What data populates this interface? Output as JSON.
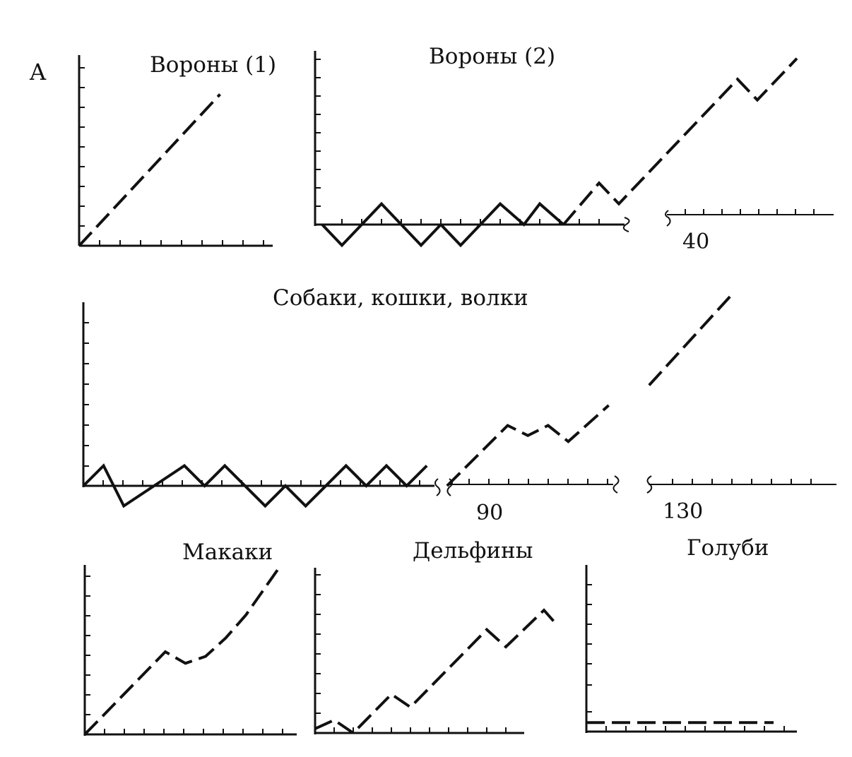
{
  "figure": {
    "panel_letter": "A"
  },
  "chart_data": [
    {
      "id": "crows1",
      "type": "line",
      "title": "Вороны (1)",
      "segments": [
        {
          "style": "dashed",
          "points": [
            [
              0,
              0
            ],
            [
              7,
              7.8
            ]
          ]
        }
      ]
    },
    {
      "id": "crows2",
      "type": "line",
      "title": "Вороны (2)",
      "break_labels": [
        "40"
      ],
      "segments": [
        {
          "style": "solid",
          "points": [
            [
              0,
              0
            ],
            [
              1,
              -1
            ],
            [
              3,
              1
            ],
            [
              5,
              -1
            ],
            [
              6,
              0
            ],
            [
              7,
              -1
            ],
            [
              9,
              1
            ],
            [
              10.2,
              0
            ],
            [
              11,
              1
            ],
            [
              12.2,
              0
            ]
          ]
        },
        {
          "style": "dashed",
          "points": [
            [
              12.2,
              0
            ],
            [
              14,
              2
            ],
            [
              15,
              1
            ],
            [
              21,
              7
            ],
            [
              22,
              6
            ],
            [
              24,
              8
            ]
          ]
        }
      ]
    },
    {
      "id": "dogs",
      "type": "line",
      "title": "Собаки, кошки, волки",
      "break_labels": [
        "90",
        "130"
      ],
      "segments": [
        {
          "style": "solid",
          "points": [
            [
              0,
              0
            ],
            [
              1,
              1
            ],
            [
              2,
              -1
            ],
            [
              5,
              1
            ],
            [
              6,
              0
            ],
            [
              7,
              1
            ],
            [
              9,
              -1
            ],
            [
              10,
              0
            ],
            [
              11,
              -1
            ],
            [
              13,
              1
            ],
            [
              14,
              0
            ],
            [
              15,
              1
            ],
            [
              16,
              0
            ],
            [
              17,
              1
            ]
          ]
        },
        {
          "style": "dashed",
          "points": [
            [
              18,
              0
            ],
            [
              21,
              3
            ],
            [
              22,
              2.5
            ],
            [
              23,
              3
            ],
            [
              24,
              2.2
            ],
            [
              26,
              4
            ]
          ]
        },
        {
          "style": "dashed",
          "points": [
            [
              28,
              5
            ],
            [
              32,
              9.4
            ]
          ]
        }
      ]
    },
    {
      "id": "macaques",
      "type": "line",
      "title": "Макаки",
      "segments": [
        {
          "style": "dashed",
          "points": [
            [
              0,
              0
            ],
            [
              4,
              3.6
            ],
            [
              5,
              3.1
            ],
            [
              6,
              3.4
            ],
            [
              7,
              4.2
            ],
            [
              8,
              5.2
            ],
            [
              9.6,
              7.2
            ]
          ]
        }
      ]
    },
    {
      "id": "dolphins",
      "type": "line",
      "title": "Дельфины",
      "segments": [
        {
          "style": "dashed",
          "points": [
            [
              0,
              0.2
            ],
            [
              1,
              0.6
            ],
            [
              2,
              0
            ],
            [
              4,
              1.8
            ],
            [
              5,
              1.2
            ],
            [
              9,
              4.8
            ],
            [
              10,
              4
            ],
            [
              12,
              5.7
            ],
            [
              12.5,
              5.2
            ]
          ]
        }
      ]
    },
    {
      "id": "pigeons",
      "type": "line",
      "title": "Голуби",
      "segments": [
        {
          "style": "dashed",
          "points": [
            [
              0,
              0.4
            ],
            [
              10,
              0.4
            ]
          ]
        }
      ]
    }
  ]
}
